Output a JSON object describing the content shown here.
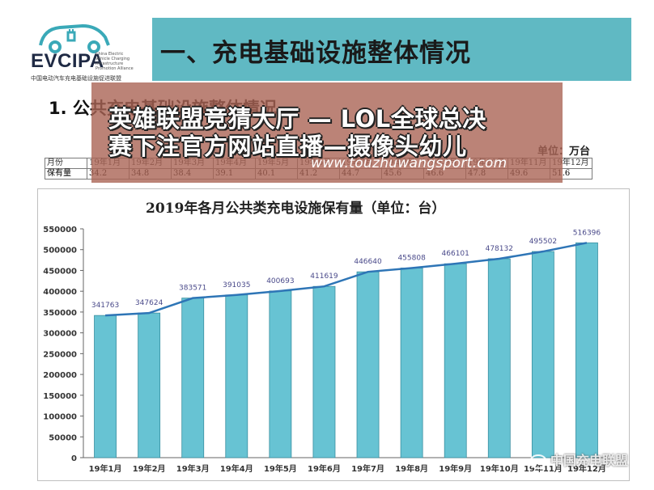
{
  "logo": {
    "text": "EVCIPA",
    "tagline": "China Electric Vehicle Charging Infrastructure Promotion Alliance",
    "subtitle": "中国电动汽车充电基础设施促进联盟"
  },
  "header": {
    "title": "一、充电基础设施整体情况"
  },
  "section": {
    "title": "1. 公共充电基础设施整体情况"
  },
  "unit_label": "单位：万台",
  "table": {
    "months": [
      "月份",
      "19年1月",
      "19年2月",
      "19年3月",
      "19年4月",
      "19年5月",
      "19年6月",
      "19年7月",
      "19年8月",
      "19年9月",
      "19年10月",
      "19年11月",
      "19年12月"
    ],
    "values": [
      "保有量",
      "34.2",
      "34.8",
      "38.4",
      "39.1",
      "40.1",
      "41.2",
      "44.7",
      "45.6",
      "46.6",
      "47.8",
      "49.6",
      "51.6"
    ]
  },
  "overlay": {
    "line1": "英雄联盟竞猜大厅 — LOL全球总决",
    "line2": "赛下注官方网站直播—摄像头幼儿",
    "url": "www.touzhuwangsport.com"
  },
  "watermark": {
    "text": "中国充电联盟"
  },
  "colors": {
    "bar": "#67c3d3",
    "line": "#2e75b6",
    "header_bg": "#60b9c3"
  },
  "chart_data": {
    "type": "bar",
    "title": "2019年各月公共类充电设施保有量（单位：台）",
    "categories": [
      "19年1月",
      "19年2月",
      "19年3月",
      "19年4月",
      "19年5月",
      "19年6月",
      "19年7月",
      "19年8月",
      "19年9月",
      "19年10月",
      "19年11月",
      "19年12月"
    ],
    "values": [
      341763,
      347624,
      383571,
      391035,
      400693,
      411619,
      446640,
      455808,
      466101,
      478132,
      495502,
      516396
    ],
    "yticks": [
      0,
      50000,
      100000,
      150000,
      200000,
      250000,
      300000,
      350000,
      400000,
      450000,
      500000,
      550000
    ],
    "ylim": [
      0,
      550000
    ],
    "trend_line": true,
    "grid": false,
    "legend": "none"
  }
}
